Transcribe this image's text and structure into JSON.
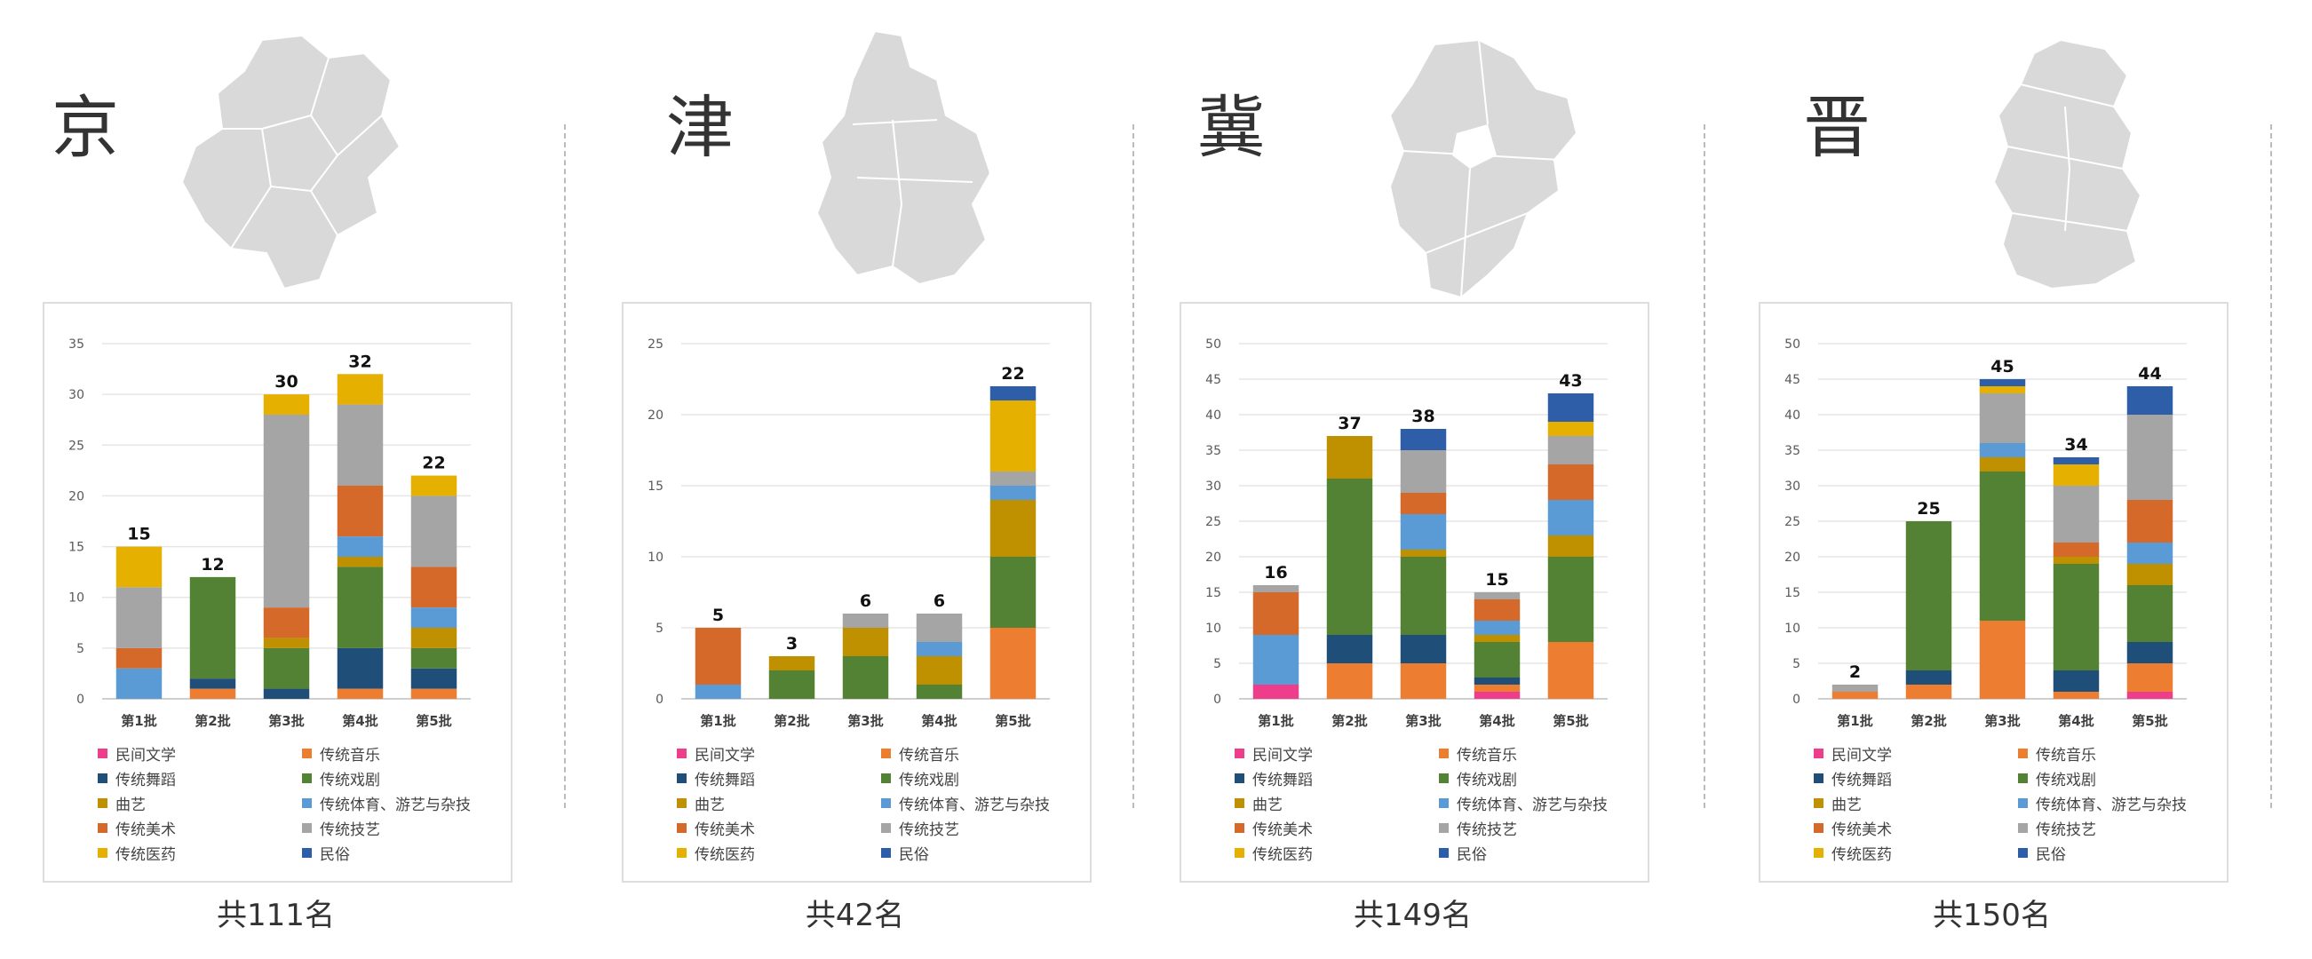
{
  "colors": {
    "folk_literature": "#ee3d8b",
    "music": "#ed7d31",
    "dance": "#1f4e79",
    "drama": "#548235",
    "quyi": "#bf9000",
    "sports": "#5b9bd5",
    "fine_arts": "#d4692a",
    "crafts": "#a5a5a5",
    "medicine": "#e6b000",
    "folk_customs": "#2e5ea8"
  },
  "legend": [
    {
      "key": "folk_literature",
      "label": "民间文学"
    },
    {
      "key": "music",
      "label": "传统音乐"
    },
    {
      "key": "dance",
      "label": "传统舞蹈"
    },
    {
      "key": "drama",
      "label": "传统戏剧"
    },
    {
      "key": "quyi",
      "label": "曲艺"
    },
    {
      "key": "sports",
      "label": "传统体育、游艺与杂技"
    },
    {
      "key": "fine_arts",
      "label": "传统美术"
    },
    {
      "key": "crafts",
      "label": "传统技艺"
    },
    {
      "key": "medicine",
      "label": "传统医药"
    },
    {
      "key": "folk_customs",
      "label": "民俗"
    }
  ],
  "panels": [
    {
      "title": "京",
      "total": "共111名"
    },
    {
      "title": "津",
      "total": "共42名"
    },
    {
      "title": "冀",
      "total": "共149名"
    },
    {
      "title": "晋",
      "total": "共150名"
    }
  ],
  "chart_data": [
    {
      "type": "bar",
      "stacked": true,
      "categories": [
        "第1批",
        "第2批",
        "第3批",
        "第4批",
        "第5批"
      ],
      "ylim": [
        0,
        35
      ],
      "yticks": [
        0,
        5,
        10,
        15,
        20,
        25,
        30,
        35
      ],
      "totals": [
        15,
        12,
        30,
        32,
        22
      ],
      "series": [
        {
          "key": "folk_literature",
          "values": [
            0,
            0,
            0,
            0,
            0
          ]
        },
        {
          "key": "music",
          "values": [
            0,
            1,
            0,
            1,
            1
          ]
        },
        {
          "key": "dance",
          "values": [
            0,
            1,
            1,
            4,
            2
          ]
        },
        {
          "key": "drama",
          "values": [
            0,
            10,
            4,
            8,
            2
          ]
        },
        {
          "key": "quyi",
          "values": [
            0,
            0,
            1,
            1,
            2
          ]
        },
        {
          "key": "sports",
          "values": [
            3,
            0,
            0,
            2,
            2
          ]
        },
        {
          "key": "fine_arts",
          "values": [
            2,
            0,
            3,
            5,
            4
          ]
        },
        {
          "key": "crafts",
          "values": [
            6,
            0,
            19,
            8,
            7
          ]
        },
        {
          "key": "medicine",
          "values": [
            4,
            0,
            2,
            3,
            2
          ]
        },
        {
          "key": "folk_customs",
          "values": [
            0,
            0,
            0,
            0,
            0
          ]
        }
      ]
    },
    {
      "type": "bar",
      "stacked": true,
      "categories": [
        "第1批",
        "第2批",
        "第3批",
        "第4批",
        "第5批"
      ],
      "ylim": [
        0,
        25
      ],
      "yticks": [
        0,
        5,
        10,
        15,
        20,
        25
      ],
      "totals": [
        5,
        3,
        6,
        6,
        22
      ],
      "series": [
        {
          "key": "folk_literature",
          "values": [
            0,
            0,
            0,
            0,
            0
          ]
        },
        {
          "key": "music",
          "values": [
            0,
            0,
            0,
            0,
            5
          ]
        },
        {
          "key": "dance",
          "values": [
            0,
            0,
            0,
            0,
            0
          ]
        },
        {
          "key": "drama",
          "values": [
            0,
            2,
            3,
            1,
            5
          ]
        },
        {
          "key": "quyi",
          "values": [
            0,
            1,
            2,
            2,
            4
          ]
        },
        {
          "key": "sports",
          "values": [
            1,
            0,
            0,
            1,
            1
          ]
        },
        {
          "key": "fine_arts",
          "values": [
            4,
            0,
            0,
            0,
            0
          ]
        },
        {
          "key": "crafts",
          "values": [
            0,
            0,
            1,
            2,
            1
          ]
        },
        {
          "key": "medicine",
          "values": [
            0,
            0,
            0,
            0,
            5
          ]
        },
        {
          "key": "folk_customs",
          "values": [
            0,
            0,
            0,
            0,
            1
          ]
        }
      ]
    },
    {
      "type": "bar",
      "stacked": true,
      "categories": [
        "第1批",
        "第2批",
        "第3批",
        "第4批",
        "第5批"
      ],
      "ylim": [
        0,
        50
      ],
      "yticks": [
        0,
        5,
        10,
        15,
        20,
        25,
        30,
        35,
        40,
        45,
        50
      ],
      "totals": [
        16,
        37,
        38,
        15,
        43
      ],
      "series": [
        {
          "key": "folk_literature",
          "values": [
            2,
            0,
            0,
            1,
            0
          ]
        },
        {
          "key": "music",
          "values": [
            0,
            5,
            5,
            1,
            8
          ]
        },
        {
          "key": "dance",
          "values": [
            0,
            4,
            4,
            1,
            0
          ]
        },
        {
          "key": "drama",
          "values": [
            0,
            22,
            11,
            5,
            12
          ]
        },
        {
          "key": "quyi",
          "values": [
            0,
            6,
            1,
            1,
            3
          ]
        },
        {
          "key": "sports",
          "values": [
            7,
            0,
            5,
            2,
            5
          ]
        },
        {
          "key": "fine_arts",
          "values": [
            6,
            0,
            3,
            3,
            5
          ]
        },
        {
          "key": "crafts",
          "values": [
            1,
            0,
            6,
            1,
            4
          ]
        },
        {
          "key": "medicine",
          "values": [
            0,
            0,
            0,
            0,
            2
          ]
        },
        {
          "key": "folk_customs",
          "values": [
            0,
            0,
            3,
            0,
            4
          ]
        }
      ]
    },
    {
      "type": "bar",
      "stacked": true,
      "categories": [
        "第1批",
        "第2批",
        "第3批",
        "第4批",
        "第5批"
      ],
      "ylim": [
        0,
        50
      ],
      "yticks": [
        0,
        5,
        10,
        15,
        20,
        25,
        30,
        35,
        40,
        45,
        50
      ],
      "totals": [
        2,
        25,
        45,
        34,
        44
      ],
      "series": [
        {
          "key": "folk_literature",
          "values": [
            0,
            0,
            0,
            0,
            1
          ]
        },
        {
          "key": "music",
          "values": [
            1,
            2,
            11,
            1,
            4
          ]
        },
        {
          "key": "dance",
          "values": [
            0,
            2,
            0,
            3,
            3
          ]
        },
        {
          "key": "drama",
          "values": [
            0,
            21,
            21,
            15,
            8
          ]
        },
        {
          "key": "quyi",
          "values": [
            0,
            0,
            2,
            1,
            3
          ]
        },
        {
          "key": "sports",
          "values": [
            0,
            0,
            2,
            0,
            3
          ]
        },
        {
          "key": "fine_arts",
          "values": [
            0,
            0,
            0,
            2,
            6
          ]
        },
        {
          "key": "crafts",
          "values": [
            1,
            0,
            7,
            8,
            12
          ]
        },
        {
          "key": "medicine",
          "values": [
            0,
            0,
            1,
            3,
            0
          ]
        },
        {
          "key": "folk_customs",
          "values": [
            0,
            0,
            1,
            1,
            4
          ]
        }
      ]
    }
  ]
}
